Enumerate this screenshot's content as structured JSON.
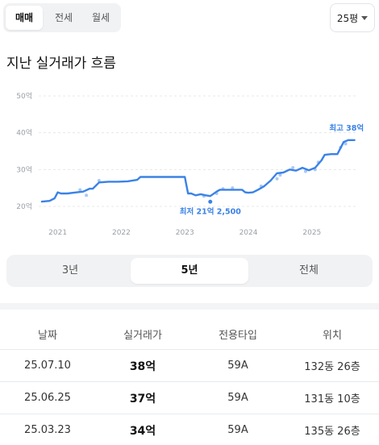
{
  "deal_tabs": [
    {
      "label": "매매",
      "active": true
    },
    {
      "label": "전세",
      "active": false
    },
    {
      "label": "월세",
      "active": false
    }
  ],
  "size_select": {
    "value": "25평"
  },
  "section_title": "지난 실거래가 흐름",
  "chart_data": {
    "type": "line",
    "title": "",
    "xlabel": "",
    "ylabel": "",
    "x_ticks": [
      "2021",
      "2022",
      "2023",
      "2024",
      "2025"
    ],
    "y_ticks": [
      "20억",
      "30억",
      "40억",
      "50억"
    ],
    "ylim": [
      20,
      50
    ],
    "xlim": [
      2020.75,
      2025.75
    ],
    "grid": true,
    "legend": "none",
    "line_color": "#3b82e6",
    "point_color": "#a9c8f5",
    "series": [
      {
        "x": [
          2020.8,
          2020.92,
          2021.0,
          2021.05,
          2021.1,
          2021.2,
          2021.35,
          2021.45,
          2021.55,
          2021.6,
          2021.7,
          2021.85,
          2022.0,
          2022.15,
          2022.3,
          2022.35,
          2022.45,
          2022.6,
          2022.75,
          2022.9,
          2023.05,
          2023.1,
          2023.15,
          2023.22,
          2023.3,
          2023.38,
          2023.45,
          2023.55,
          2023.6,
          2023.75,
          2023.85,
          2023.95,
          2024.0,
          2024.05,
          2024.12,
          2024.2,
          2024.3,
          2024.4,
          2024.5,
          2024.6,
          2024.7,
          2024.8,
          2024.9,
          2025.0,
          2025.1,
          2025.2,
          2025.25,
          2025.35,
          2025.45,
          2025.55,
          2025.62,
          2025.72
        ],
        "y": [
          21.3,
          21.5,
          22.2,
          23.8,
          23.5,
          23.5,
          23.8,
          24.0,
          24.8,
          24.8,
          26.5,
          26.7,
          26.7,
          26.8,
          27.2,
          28.0,
          28.0,
          28.0,
          28.0,
          28.0,
          28.0,
          23.5,
          23.5,
          23.0,
          23.3,
          23.0,
          22.8,
          24.0,
          24.5,
          24.5,
          24.5,
          24.5,
          23.8,
          23.7,
          23.8,
          24.5,
          25.5,
          27.0,
          29.0,
          29.2,
          30.0,
          29.7,
          30.5,
          29.8,
          30.5,
          32.5,
          34.0,
          34.2,
          34.2,
          37.5,
          38.0,
          38.0
        ]
      }
    ],
    "scatter_points": {
      "x": [
        2021.4,
        2021.5,
        2021.7,
        2023.35,
        2023.55,
        2023.65,
        2023.8,
        2024.25,
        2024.5,
        2024.55,
        2024.75,
        2024.95,
        2025.1,
        2025.15,
        2025.5,
        2025.58
      ],
      "y": [
        24.5,
        23.0,
        27.0,
        22.8,
        23.5,
        24.8,
        25.0,
        25.5,
        27.5,
        28.5,
        30.5,
        29.5,
        30.0,
        32.0,
        36.0,
        37.0
      ]
    },
    "annotations": [
      {
        "label": "최고 38억",
        "x": 2025.62,
        "y": 38.0,
        "marker": false
      },
      {
        "label": "최저 21억 2,500",
        "x": 2023.45,
        "y": 21.25,
        "marker": true
      }
    ]
  },
  "period_tabs": [
    {
      "label": "3년",
      "active": false
    },
    {
      "label": "5년",
      "active": true
    },
    {
      "label": "전체",
      "active": false
    }
  ],
  "table": {
    "headers": [
      "날짜",
      "실거래가",
      "전용타입",
      "위치"
    ],
    "rows": [
      {
        "date": "25.07.10",
        "price": "38억",
        "type": "59A",
        "location": "132동 26층"
      },
      {
        "date": "25.06.25",
        "price": "37억",
        "type": "59A",
        "location": "131동 10층"
      },
      {
        "date": "25.03.23",
        "price": "34억",
        "type": "59A",
        "location": "135동 26층"
      }
    ]
  }
}
